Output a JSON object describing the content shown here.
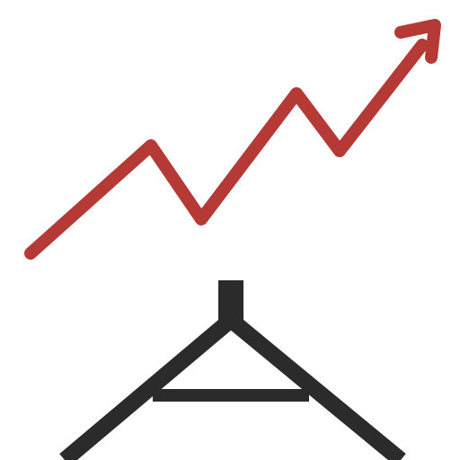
{
  "icon": {
    "name": "rising-trend-arrow-with-stand-icon",
    "colors": {
      "background": "#ffffff",
      "trend_line": "#b53a35",
      "stand": "#2b2b2b"
    }
  }
}
